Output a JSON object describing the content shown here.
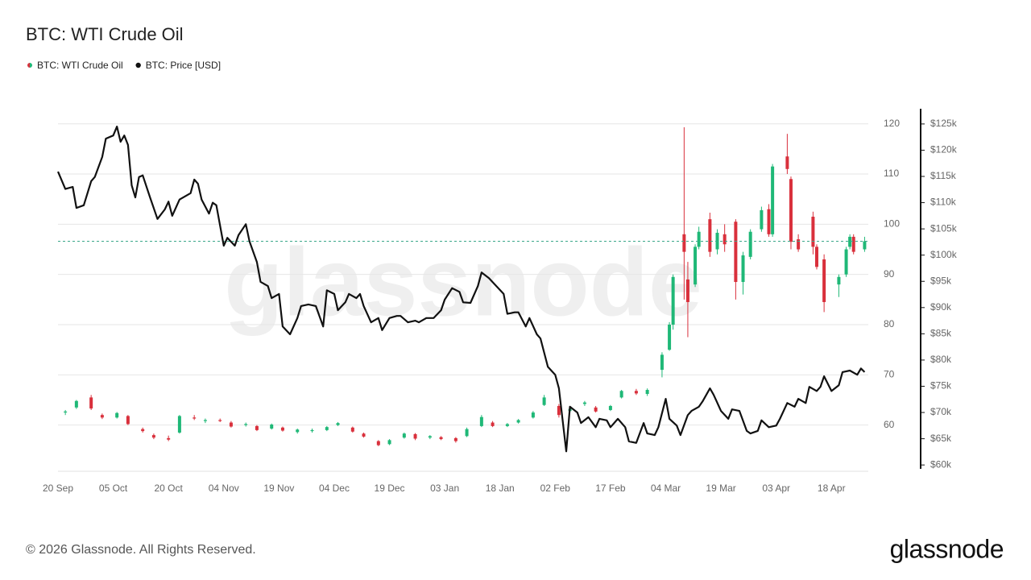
{
  "chart_data": {
    "type": "candlestick",
    "title": "BTC: WTI Crude Oil",
    "watermark": "glassnode",
    "grid": true,
    "xlim": [
      "20 Sep",
      "28 Apr"
    ],
    "xticks": [
      "20 Sep",
      "05 Oct",
      "20 Oct",
      "04 Nov",
      "19 Nov",
      "04 Dec",
      "19 Dec",
      "03 Jan",
      "18 Jan",
      "02 Feb",
      "17 Feb",
      "04 Mar",
      "19 Mar",
      "03 Apr",
      "18 Apr"
    ],
    "ylim": [
      50.8,
      123.0
    ],
    "yticks": [
      60,
      70,
      80,
      90,
      100,
      110,
      120
    ],
    "y2lim": [
      58.8,
      127.9
    ],
    "y2ticks": [
      {
        "value": 60,
        "label": "$60k"
      },
      {
        "value": 65,
        "label": "$65k"
      },
      {
        "value": 70,
        "label": "$70k"
      },
      {
        "value": 75,
        "label": "$75k"
      },
      {
        "value": 80,
        "label": "$80k"
      },
      {
        "value": 85,
        "label": "$85k"
      },
      {
        "value": 90,
        "label": "$90k"
      },
      {
        "value": 95,
        "label": "$95k"
      },
      {
        "value": 100,
        "label": "$100k"
      },
      {
        "value": 105,
        "label": "$105k"
      },
      {
        "value": 110,
        "label": "$110k"
      },
      {
        "value": 115,
        "label": "$115k"
      },
      {
        "value": 120,
        "label": "$120k"
      },
      {
        "value": 125,
        "label": "$125k"
      }
    ],
    "series": [
      {
        "name": "BTC: WTI Crude Oil",
        "type": "candlestick",
        "up_color": "#1fb877",
        "down_color": "#d9303c",
        "last_line_color": "#3aa88a",
        "x": [
          "22 Sep",
          "25 Sep",
          "29 Sep",
          "02 Oct",
          "06 Oct",
          "09 Oct",
          "13 Oct",
          "16 Oct",
          "20 Oct",
          "23 Oct",
          "27 Oct",
          "30 Oct",
          "03 Nov",
          "06 Nov",
          "10 Nov",
          "13 Nov",
          "17 Nov",
          "20 Nov",
          "24 Nov",
          "28 Nov",
          "02 Dec",
          "05 Dec",
          "09 Dec",
          "12 Dec",
          "16 Dec",
          "19 Dec",
          "23 Dec",
          "26 Dec",
          "30 Dec",
          "02 Jan",
          "06 Jan",
          "09 Jan",
          "13 Jan",
          "16 Jan",
          "20 Jan",
          "23 Jan",
          "27 Jan",
          "30 Jan",
          "03 Feb",
          "06 Feb",
          "10 Feb",
          "13 Feb",
          "17 Feb",
          "20 Feb",
          "24 Feb",
          "27 Feb",
          "03 Mar",
          "05 Mar",
          "06 Mar",
          "09 Mar",
          "10 Mar",
          "12 Mar",
          "13 Mar",
          "16 Mar",
          "18 Mar",
          "20 Mar",
          "23 Mar",
          "25 Mar",
          "27 Mar",
          "30 Mar",
          "01 Apr",
          "02 Apr",
          "06 Apr",
          "07 Apr",
          "09 Apr",
          "13 Apr",
          "14 Apr",
          "16 Apr",
          "20 Apr",
          "22 Apr",
          "23 Apr",
          "24 Apr",
          "27 Apr"
        ],
        "open": [
          62.5,
          63.5,
          65.5,
          62.0,
          61.5,
          61.8,
          59.2,
          58.0,
          57.4,
          58.5,
          61.5,
          60.8,
          61.0,
          60.5,
          60.0,
          59.8,
          59.3,
          59.5,
          58.6,
          58.8,
          59.0,
          60.0,
          59.5,
          58.3,
          56.8,
          56.2,
          57.5,
          58.2,
          57.5,
          57.6,
          57.4,
          57.8,
          59.8,
          60.5,
          59.8,
          60.5,
          61.5,
          64.0,
          63.8,
          62.8,
          64.2,
          63.5,
          63.0,
          65.5,
          66.8,
          66.2,
          71.0,
          75.0,
          80.0,
          98.0,
          89.0,
          88.0,
          95.5,
          101.0,
          95.0,
          98.0,
          100.5,
          88.5,
          93.5,
          99.0,
          103.0,
          98.0,
          113.5,
          109.0,
          97.0,
          101.5,
          95.5,
          93.0,
          88.0,
          90.0,
          95.5,
          97.5,
          95.0
        ],
        "high": [
          63.0,
          65.0,
          66.0,
          62.3,
          62.6,
          62.0,
          59.5,
          58.3,
          57.9,
          62.0,
          62.0,
          61.3,
          61.3,
          60.8,
          60.5,
          60.0,
          60.3,
          59.7,
          59.3,
          59.3,
          59.8,
          60.6,
          59.7,
          58.5,
          57.0,
          57.2,
          58.5,
          58.4,
          58.0,
          57.8,
          57.6,
          59.5,
          62.0,
          60.8,
          60.4,
          61.2,
          62.8,
          66.0,
          64.2,
          63.5,
          64.8,
          63.8,
          64.0,
          67.0,
          67.2,
          67.3,
          74.5,
          80.5,
          90.0,
          119.3,
          92.5,
          96.0,
          99.5,
          102.3,
          99.0,
          100.0,
          101.0,
          94.5,
          99.0,
          103.5,
          104.0,
          112.0,
          118.0,
          109.5,
          98.0,
          102.5,
          96.0,
          94.0,
          90.0,
          95.5,
          98.0,
          98.0,
          97.5
        ],
        "low": [
          62.0,
          63.2,
          63.0,
          61.2,
          61.3,
          60.0,
          58.5,
          57.2,
          56.8,
          58.3,
          61.0,
          60.4,
          60.6,
          59.5,
          59.7,
          58.8,
          59.1,
          58.7,
          58.3,
          58.5,
          58.8,
          59.8,
          58.5,
          57.5,
          55.8,
          56.0,
          57.3,
          57.0,
          57.2,
          57.0,
          56.5,
          57.6,
          59.6,
          59.6,
          59.6,
          60.3,
          61.3,
          63.8,
          61.5,
          62.5,
          63.8,
          62.5,
          62.8,
          65.3,
          66.0,
          65.8,
          69.5,
          74.8,
          79.0,
          85.0,
          77.5,
          87.5,
          95.0,
          93.5,
          94.0,
          94.5,
          85.0,
          86.0,
          93.0,
          98.5,
          97.5,
          97.5,
          110.0,
          95.0,
          94.5,
          94.0,
          91.0,
          82.5,
          85.5,
          89.5,
          95.0,
          94.0,
          94.5
        ],
        "close": [
          62.7,
          64.8,
          63.3,
          61.5,
          62.4,
          60.2,
          58.8,
          57.5,
          57.1,
          61.8,
          61.3,
          61.0,
          60.8,
          59.7,
          60.2,
          59.0,
          60.1,
          58.9,
          59.1,
          59.0,
          59.6,
          60.4,
          58.7,
          57.7,
          56.0,
          57.0,
          58.3,
          57.3,
          57.8,
          57.2,
          56.8,
          59.2,
          61.6,
          59.8,
          60.2,
          61.0,
          62.5,
          65.5,
          62.0,
          63.2,
          64.5,
          62.7,
          63.8,
          66.8,
          66.3,
          67.0,
          74.0,
          80.0,
          89.5,
          94.5,
          84.5,
          95.5,
          98.5,
          94.5,
          98.3,
          96.0,
          88.5,
          93.8,
          98.5,
          102.8,
          98.0,
          111.5,
          111.0,
          96.5,
          95.0,
          95.5,
          91.5,
          84.5,
          89.5,
          95.0,
          97.5,
          94.5,
          96.6
        ]
      },
      {
        "name": "BTC: Price [USD]",
        "type": "line",
        "axis": "y2",
        "color": "#111111",
        "x": [
          "20 Sep",
          "22 Sep",
          "24 Sep",
          "25 Sep",
          "27 Sep",
          "29 Sep",
          "30 Sep",
          "02 Oct",
          "03 Oct",
          "05 Oct",
          "06 Oct",
          "07 Oct",
          "08 Oct",
          "09 Oct",
          "10 Oct",
          "11 Oct",
          "12 Oct",
          "13 Oct",
          "15 Oct",
          "17 Oct",
          "19 Oct",
          "20 Oct",
          "21 Oct",
          "23 Oct",
          "26 Oct",
          "27 Oct",
          "28 Oct",
          "29 Oct",
          "31 Oct",
          "01 Nov",
          "02 Nov",
          "04 Nov",
          "05 Nov",
          "07 Nov",
          "08 Nov",
          "10 Nov",
          "11 Nov",
          "13 Nov",
          "14 Nov",
          "16 Nov",
          "17 Nov",
          "19 Nov",
          "20 Nov",
          "22 Nov",
          "24 Nov",
          "25 Nov",
          "27 Nov",
          "29 Nov",
          "01 Dec",
          "02 Dec",
          "04 Dec",
          "05 Dec",
          "07 Dec",
          "08 Dec",
          "10 Dec",
          "11 Dec",
          "12 Dec",
          "14 Dec",
          "16 Dec",
          "17 Dec",
          "19 Dec",
          "21 Dec",
          "22 Dec",
          "24 Dec",
          "26 Dec",
          "27 Dec",
          "29 Dec",
          "31 Dec",
          "02 Jan",
          "03 Jan",
          "05 Jan",
          "07 Jan",
          "08 Jan",
          "10 Jan",
          "12 Jan",
          "13 Jan",
          "15 Jan",
          "17 Jan",
          "19 Jan",
          "20 Jan",
          "22 Jan",
          "23 Jan",
          "25 Jan",
          "26 Jan",
          "28 Jan",
          "29 Jan",
          "31 Jan",
          "02 Feb",
          "03 Feb",
          "05 Feb",
          "06 Feb",
          "08 Feb",
          "09 Feb",
          "11 Feb",
          "13 Feb",
          "14 Feb",
          "16 Feb",
          "17 Feb",
          "19 Feb",
          "21 Feb",
          "22 Feb",
          "24 Feb",
          "26 Feb",
          "27 Feb",
          "01 Mar",
          "02 Mar",
          "04 Mar",
          "05 Mar",
          "07 Mar",
          "08 Mar",
          "10 Mar",
          "11 Mar",
          "13 Mar",
          "14 Mar",
          "16 Mar",
          "17 Mar",
          "19 Mar",
          "21 Mar",
          "22 Mar",
          "24 Mar",
          "26 Mar",
          "27 Mar",
          "29 Mar",
          "30 Mar",
          "01 Apr",
          "03 Apr",
          "04 Apr",
          "06 Apr",
          "08 Apr",
          "09 Apr",
          "11 Apr",
          "12 Apr",
          "14 Apr",
          "15 Apr",
          "16 Apr",
          "18 Apr",
          "20 Apr",
          "21 Apr",
          "23 Apr",
          "25 Apr",
          "26 Apr",
          "27 Apr"
        ],
        "values": [
          115.9,
          112.6,
          113.0,
          109.0,
          109.5,
          114.1,
          114.9,
          118.7,
          122.2,
          122.8,
          124.5,
          121.6,
          122.8,
          121.0,
          113.3,
          111.0,
          114.9,
          115.2,
          111.0,
          106.9,
          108.7,
          110.2,
          107.5,
          110.6,
          111.8,
          114.4,
          113.6,
          110.6,
          107.9,
          110.0,
          109.5,
          101.8,
          103.3,
          101.8,
          103.8,
          105.9,
          102.6,
          98.7,
          94.9,
          94.1,
          91.8,
          92.6,
          86.4,
          84.9,
          88.0,
          90.3,
          90.6,
          90.3,
          86.4,
          93.3,
          92.6,
          89.5,
          91.0,
          92.6,
          91.8,
          92.6,
          90.3,
          87.2,
          88.0,
          85.7,
          88.0,
          88.4,
          88.4,
          87.2,
          87.5,
          87.2,
          88.0,
          88.0,
          89.5,
          91.5,
          93.7,
          93.0,
          91.0,
          90.9,
          94.1,
          96.7,
          95.6,
          94.1,
          92.6,
          88.8,
          89.1,
          89.1,
          86.4,
          88.0,
          84.9,
          84.1,
          78.7,
          77.2,
          74.6,
          62.6,
          71.1,
          70.0,
          68.0,
          69.1,
          67.2,
          68.8,
          68.5,
          67.2,
          68.8,
          67.2,
          64.5,
          64.2,
          68.0,
          66.0,
          65.7,
          67.2,
          72.6,
          68.8,
          67.5,
          65.7,
          69.5,
          70.3,
          71.1,
          72.1,
          74.6,
          73.4,
          70.3,
          68.8,
          70.6,
          70.3,
          66.5,
          66.0,
          66.5,
          68.5,
          67.2,
          67.5,
          68.8,
          71.8,
          71.1,
          72.6,
          71.8,
          74.9,
          74.1,
          74.9,
          76.9,
          74.1,
          75.2,
          77.7,
          78.0,
          77.2,
          78.4,
          77.7
        ]
      }
    ]
  },
  "footer": {
    "copyright": "© 2026 Glassnode. All Rights Reserved.",
    "logo": "glassnode"
  }
}
